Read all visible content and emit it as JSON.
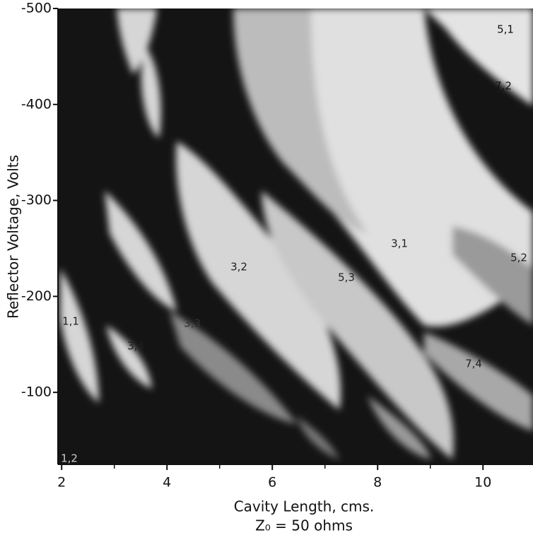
{
  "chart_data": {
    "type": "mode-chart",
    "xlabel": "Cavity Length, cms.",
    "subtitle": "Z₀ = 50 ohms",
    "ylabel": "Reflector Voltage, Volts",
    "xlim": [
      1.93,
      10.95
    ],
    "xticks": [
      2,
      4,
      6,
      8,
      10
    ],
    "xminor": [
      3,
      5,
      7,
      9
    ],
    "ylim": [
      -25,
      -500
    ],
    "yticks": [
      -500,
      -400,
      -300,
      -200,
      -100
    ],
    "annotations": [
      "5,1",
      "7,2",
      "3,1",
      "5,2",
      "3,2",
      "5,3",
      "1,1",
      "3,3",
      "3,4",
      "7,4",
      "1,2"
    ]
  }
}
